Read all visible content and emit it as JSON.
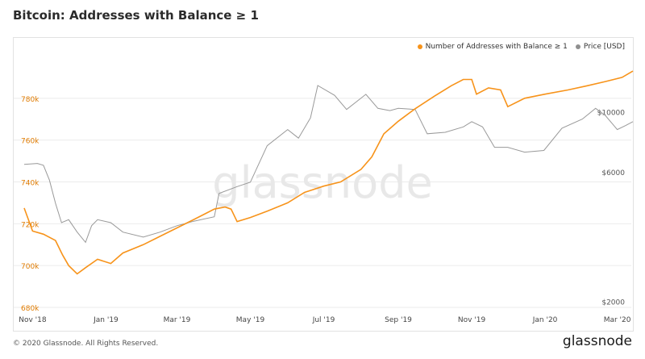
{
  "title": "Bitcoin: Addresses with Balance ≥ 1",
  "footer": "© 2020 Glassnode. All Rights Reserved.",
  "brand": "glassnode",
  "watermark": "glassnode",
  "colors": {
    "addresses": "#f7931a",
    "price": "#999999",
    "axisLeft": "#e07b00",
    "axisRight": "#555555",
    "grid": "#ebebeb"
  },
  "chart_data": {
    "type": "line",
    "title": "Bitcoin: Addresses with Balance ≥ 1",
    "legend_position": "top-right",
    "grid": true,
    "x_ticks": [
      "Nov '18",
      "Jan '19",
      "Mar '19",
      "May '19",
      "Jul '19",
      "Sep '19",
      "Nov '19",
      "Jan '20",
      "Mar '20"
    ],
    "x_range": [
      "2018-10-25",
      "2020-03-14"
    ],
    "y_left": {
      "ticks": [
        "680k",
        "700k",
        "720k",
        "740k",
        "760k",
        "780k"
      ],
      "range": [
        680000,
        800000
      ]
    },
    "y_right": {
      "ticks": [
        "$2000",
        "$6000",
        "$10000"
      ],
      "scale": "log",
      "range": [
        1900,
        16000
      ]
    },
    "series": [
      {
        "name": "Number of Addresses with Balance ≥ 1",
        "axis": "left",
        "points": [
          [
            "2018-10-25",
            727500
          ],
          [
            "2018-11-01",
            716500
          ],
          [
            "2018-11-10",
            715000
          ],
          [
            "2018-11-20",
            712000
          ],
          [
            "2018-11-26",
            705000
          ],
          [
            "2018-12-01",
            700000
          ],
          [
            "2018-12-08",
            696000
          ],
          [
            "2018-12-15",
            699000
          ],
          [
            "2018-12-25",
            703000
          ],
          [
            "2019-01-05",
            701000
          ],
          [
            "2019-01-15",
            706000
          ],
          [
            "2019-02-01",
            710000
          ],
          [
            "2019-02-15",
            714000
          ],
          [
            "2019-03-01",
            718000
          ],
          [
            "2019-03-15",
            722000
          ],
          [
            "2019-04-01",
            727000
          ],
          [
            "2019-04-10",
            728000
          ],
          [
            "2019-04-15",
            727000
          ],
          [
            "2019-04-20",
            721000
          ],
          [
            "2019-05-01",
            723000
          ],
          [
            "2019-05-15",
            726000
          ],
          [
            "2019-06-01",
            730000
          ],
          [
            "2019-06-15",
            735000
          ],
          [
            "2019-07-01",
            738000
          ],
          [
            "2019-07-15",
            740000
          ],
          [
            "2019-08-01",
            746000
          ],
          [
            "2019-08-10",
            752000
          ],
          [
            "2019-08-20",
            763000
          ],
          [
            "2019-09-01",
            769000
          ],
          [
            "2019-09-15",
            775000
          ],
          [
            "2019-10-01",
            781000
          ],
          [
            "2019-10-15",
            786000
          ],
          [
            "2019-10-25",
            789000
          ],
          [
            "2019-11-01",
            789000
          ],
          [
            "2019-11-05",
            782000
          ],
          [
            "2019-11-15",
            785000
          ],
          [
            "2019-11-25",
            784000
          ],
          [
            "2019-12-01",
            776000
          ],
          [
            "2019-12-15",
            780000
          ],
          [
            "2020-01-01",
            782000
          ],
          [
            "2020-01-20",
            784000
          ],
          [
            "2020-02-05",
            786000
          ],
          [
            "2020-02-20",
            788000
          ],
          [
            "2020-03-05",
            790000
          ],
          [
            "2020-03-14",
            793000
          ]
        ]
      },
      {
        "name": "Price [USD]",
        "axis": "right",
        "points": [
          [
            "2018-10-25",
            6400
          ],
          [
            "2018-11-05",
            6450
          ],
          [
            "2018-11-10",
            6350
          ],
          [
            "2018-11-15",
            5600
          ],
          [
            "2018-11-20",
            4600
          ],
          [
            "2018-11-25",
            3900
          ],
          [
            "2018-12-01",
            4000
          ],
          [
            "2018-12-08",
            3600
          ],
          [
            "2018-12-15",
            3300
          ],
          [
            "2018-12-20",
            3800
          ],
          [
            "2018-12-25",
            4000
          ],
          [
            "2019-01-05",
            3900
          ],
          [
            "2019-01-15",
            3600
          ],
          [
            "2019-02-01",
            3450
          ],
          [
            "2019-02-15",
            3600
          ],
          [
            "2019-03-01",
            3800
          ],
          [
            "2019-03-15",
            3950
          ],
          [
            "2019-04-01",
            4100
          ],
          [
            "2019-04-05",
            5000
          ],
          [
            "2019-04-20",
            5300
          ],
          [
            "2019-05-01",
            5500
          ],
          [
            "2019-05-15",
            7500
          ],
          [
            "2019-06-01",
            8600
          ],
          [
            "2019-06-10",
            8000
          ],
          [
            "2019-06-20",
            9500
          ],
          [
            "2019-06-26",
            12500
          ],
          [
            "2019-07-10",
            11500
          ],
          [
            "2019-07-20",
            10200
          ],
          [
            "2019-08-05",
            11600
          ],
          [
            "2019-08-15",
            10300
          ],
          [
            "2019-08-25",
            10100
          ],
          [
            "2019-09-01",
            10300
          ],
          [
            "2019-09-15",
            10200
          ],
          [
            "2019-09-25",
            8300
          ],
          [
            "2019-10-10",
            8400
          ],
          [
            "2019-10-25",
            8800
          ],
          [
            "2019-11-01",
            9200
          ],
          [
            "2019-11-10",
            8800
          ],
          [
            "2019-11-20",
            7400
          ],
          [
            "2019-12-01",
            7400
          ],
          [
            "2019-12-15",
            7100
          ],
          [
            "2019-12-31",
            7200
          ],
          [
            "2020-01-15",
            8700
          ],
          [
            "2020-02-01",
            9400
          ],
          [
            "2020-02-12",
            10300
          ],
          [
            "2020-02-20",
            9700
          ],
          [
            "2020-03-01",
            8600
          ],
          [
            "2020-03-08",
            8900
          ],
          [
            "2020-03-14",
            9200
          ]
        ]
      }
    ]
  }
}
